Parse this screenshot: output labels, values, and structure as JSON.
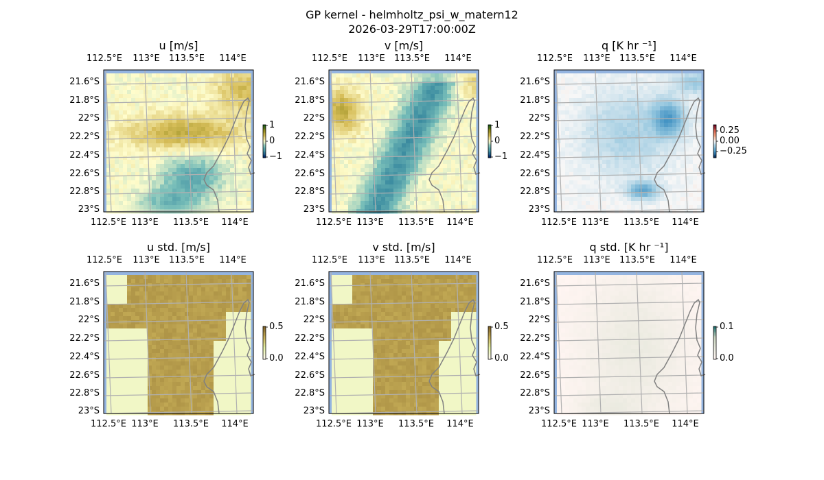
{
  "chart_data": {
    "type": "heatmap",
    "title": "GP kernel - helmholtz_psi_w_matern12",
    "subtitle": "2026-03-29T17:00:00Z",
    "lon_ticks": [
      "112.5°E",
      "113°E",
      "113.5°E",
      "114°E"
    ],
    "lat_ticks": [
      "21.6°S",
      "21.8°S",
      "22°S",
      "22.2°S",
      "22.4°S",
      "22.6°S",
      "22.8°S",
      "23°S"
    ],
    "lon_values": [
      112.5,
      113,
      113.5,
      114
    ],
    "lat_values": [
      -21.6,
      -21.8,
      -22.0,
      -22.2,
      -22.4,
      -22.6,
      -22.8,
      -23.0
    ],
    "panels": [
      {
        "id": "u",
        "title": "u [m/s]",
        "cbar_ticks": [
          "1",
          "0",
          "−1"
        ],
        "vmin": -1,
        "vmax": 1,
        "field": "u"
      },
      {
        "id": "v",
        "title": "v [m/s]",
        "cbar_ticks": [
          "1",
          "0",
          "−1"
        ],
        "vmin": -1,
        "vmax": 1,
        "field": "v"
      },
      {
        "id": "q",
        "title": "q [K hr ⁻¹]",
        "cbar_ticks": [
          "0.25",
          "0.00",
          "−0.25"
        ],
        "vmin": -0.4,
        "vmax": 0.4,
        "field": "q"
      },
      {
        "id": "ustd",
        "title": "u std. [m/s]",
        "cbar_ticks": [
          "0.5",
          "0.0"
        ],
        "vmin": 0,
        "vmax": 0.6,
        "field": "ustd"
      },
      {
        "id": "vstd",
        "title": "v std. [m/s]",
        "cbar_ticks": [
          "0.5",
          "0.0"
        ],
        "vmin": 0,
        "vmax": 0.6,
        "field": "vstd"
      },
      {
        "id": "qstd",
        "title": "q std. [K hr ⁻¹]",
        "cbar_ticks": [
          "0.1",
          "0.0"
        ],
        "vmin": 0,
        "vmax": 0.12,
        "field": "qstd"
      }
    ],
    "colors": {
      "ocean": "#94b4e0",
      "coast": "#808080",
      "grid": "#b0b0b0"
    }
  }
}
